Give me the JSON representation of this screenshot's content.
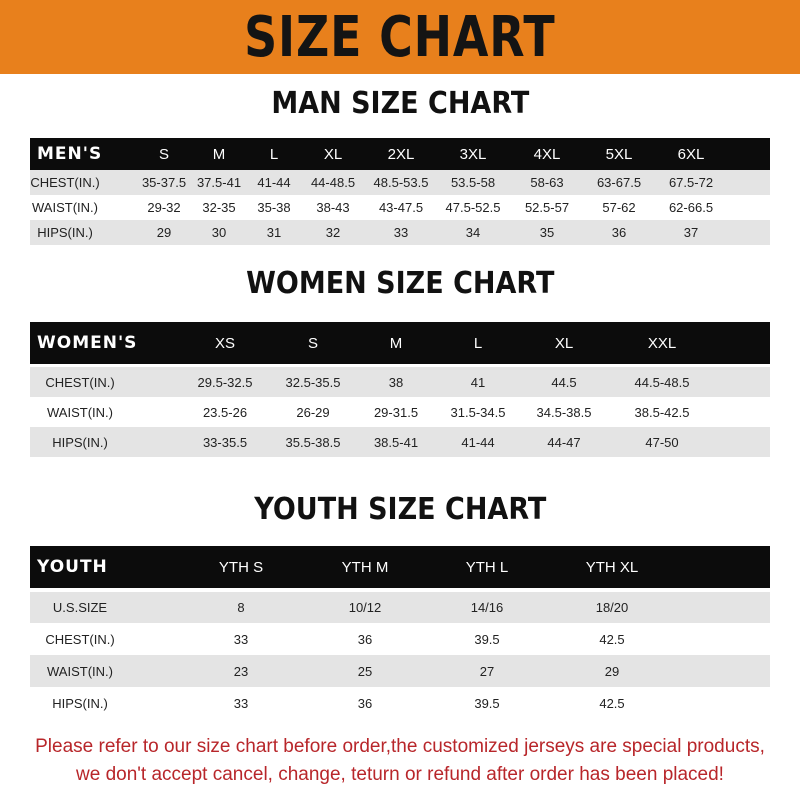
{
  "header": {
    "title": "SIZE CHART",
    "banner_color": "#e8801c"
  },
  "men": {
    "title": "MAN SIZE CHART",
    "columns": [
      "MEN'S",
      "S",
      "M",
      "L",
      "XL",
      "2XL",
      "3XL",
      "4XL",
      "5XL",
      "6XL"
    ],
    "rows": [
      [
        "CHEST(IN.)",
        "35-37.5",
        "37.5-41",
        "41-44",
        "44-48.5",
        "48.5-53.5",
        "53.5-58",
        "58-63",
        "63-67.5",
        "67.5-72"
      ],
      [
        "WAIST(IN.)",
        "29-32",
        "32-35",
        "35-38",
        "38-43",
        "43-47.5",
        "47.5-52.5",
        "52.5-57",
        "57-62",
        "62-66.5"
      ],
      [
        "HIPS(IN.)",
        "29",
        "30",
        "31",
        "32",
        "33",
        "34",
        "35",
        "36",
        "37"
      ]
    ]
  },
  "women": {
    "title": "WOMEN SIZE CHART",
    "columns": [
      "WOMEN'S",
      "XS",
      "S",
      "M",
      "L",
      "XL",
      "XXL"
    ],
    "rows": [
      [
        "CHEST(IN.)",
        "29.5-32.5",
        "32.5-35.5",
        "38",
        "41",
        "44.5",
        "44.5-48.5"
      ],
      [
        "WAIST(IN.)",
        "23.5-26",
        "26-29",
        "29-31.5",
        "31.5-34.5",
        "34.5-38.5",
        "38.5-42.5"
      ],
      [
        "HIPS(IN.)",
        "33-35.5",
        "35.5-38.5",
        "38.5-41",
        "41-44",
        "44-47",
        "47-50"
      ]
    ]
  },
  "youth": {
    "title": "YOUTH SIZE CHART",
    "columns": [
      "YOUTH",
      "YTH S",
      "YTH M",
      "YTH L",
      "YTH XL"
    ],
    "rows": [
      [
        "U.S.SIZE",
        "8",
        "10/12",
        "14/16",
        "18/20"
      ],
      [
        "CHEST(IN.)",
        "33",
        "36",
        "39.5",
        "42.5"
      ],
      [
        "WAIST(IN.)",
        "23",
        "25",
        "27",
        "29"
      ],
      [
        "HIPS(IN.)",
        "33",
        "36",
        "39.5",
        "42.5"
      ]
    ]
  },
  "footer": {
    "line1": "Please refer to our size chart before order,the customized jerseys are special products,",
    "line2": "we don't accept cancel, change, teturn or refund after order has been placed!",
    "color": "#b8262a"
  }
}
